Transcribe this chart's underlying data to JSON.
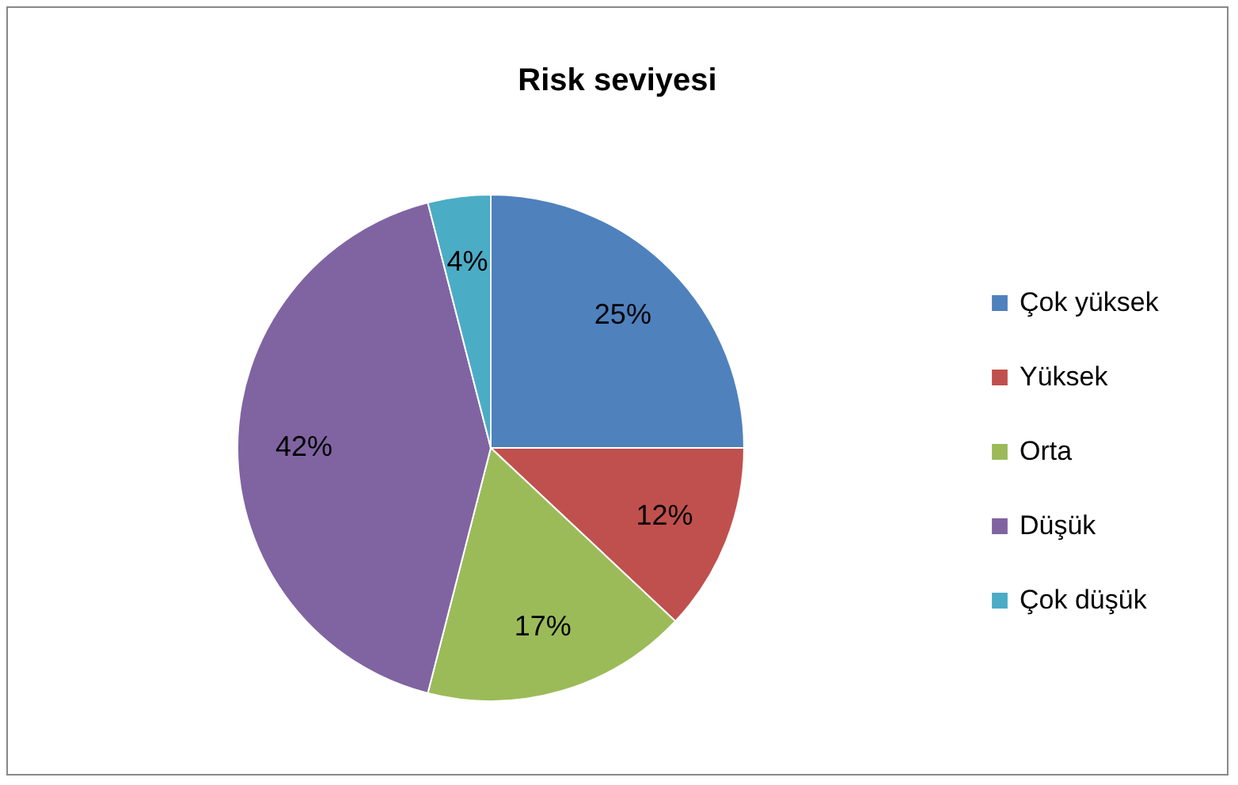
{
  "chart_data": {
    "type": "pie",
    "title": "Risk seviyesi",
    "categories": [
      "Çok yüksek",
      "Yüksek",
      "Orta",
      "Düşük",
      "Çok düşük"
    ],
    "values": [
      25,
      12,
      17,
      42,
      4
    ],
    "colors": [
      "#4f81bd",
      "#c0504d",
      "#9bbb59",
      "#8064a2",
      "#4bacc6"
    ],
    "value_labels": [
      "25%",
      "12%",
      "17%",
      "42%",
      "4%"
    ],
    "legend": "right"
  }
}
